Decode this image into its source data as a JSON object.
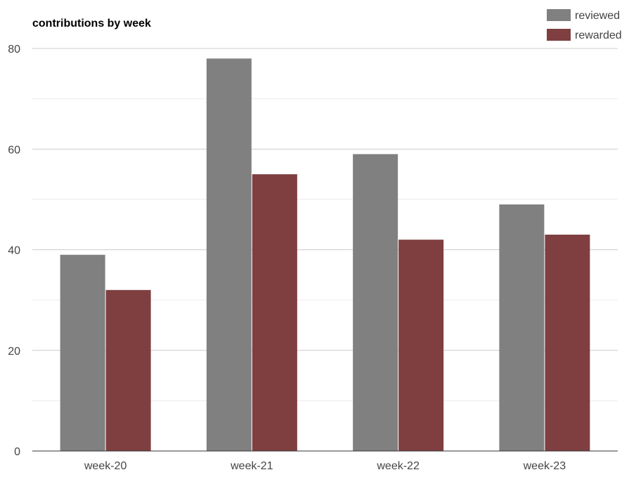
{
  "chart_data": {
    "type": "bar",
    "title": "contributions by week",
    "xlabel": "",
    "ylabel": "",
    "categories": [
      "week-20",
      "week-21",
      "week-22",
      "week-23"
    ],
    "series": [
      {
        "name": "reviewed",
        "color": "#808080",
        "values": [
          39,
          78,
          59,
          49
        ]
      },
      {
        "name": "rewarded",
        "color": "#7f3f40",
        "values": [
          32,
          55,
          42,
          43
        ]
      }
    ],
    "ylim": [
      0,
      80
    ],
    "yticks": [
      0,
      20,
      40,
      60,
      80
    ],
    "grid": true,
    "legend_position": "top-right"
  }
}
